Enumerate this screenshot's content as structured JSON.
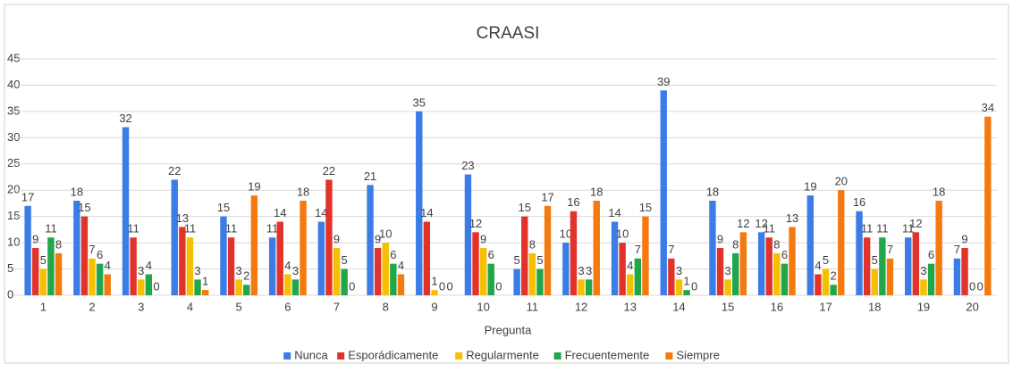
{
  "chart_data": {
    "type": "bar",
    "title": "CRAASI",
    "x_label": "Pregunta",
    "categories": [
      "1",
      "2",
      "3",
      "4",
      "5",
      "6",
      "7",
      "8",
      "9",
      "10",
      "11",
      "12",
      "13",
      "14",
      "15",
      "16",
      "17",
      "18",
      "19",
      "20"
    ],
    "series": [
      {
        "name": "Nunca",
        "color": "#3c7ce6",
        "values": [
          17,
          18,
          32,
          22,
          15,
          11,
          14,
          21,
          35,
          23,
          5,
          10,
          14,
          39,
          18,
          12,
          19,
          16,
          11,
          7
        ]
      },
      {
        "name": "Esporádicamente",
        "color": "#e2332a",
        "values": [
          9,
          15,
          11,
          13,
          11,
          14,
          22,
          9,
          14,
          12,
          15,
          16,
          10,
          7,
          9,
          11,
          4,
          11,
          12,
          9
        ]
      },
      {
        "name": "Regularmente",
        "color": "#f5c000",
        "values": [
          5,
          7,
          3,
          11,
          3,
          4,
          9,
          10,
          1,
          9,
          8,
          3,
          4,
          3,
          3,
          8,
          5,
          5,
          3,
          0
        ]
      },
      {
        "name": "Frecuentemente",
        "color": "#22a64a",
        "values": [
          11,
          6,
          4,
          3,
          2,
          3,
          5,
          6,
          0,
          6,
          5,
          3,
          7,
          1,
          8,
          6,
          2,
          11,
          6,
          0
        ]
      },
      {
        "name": "Siempre",
        "color": "#f47a10",
        "values": [
          8,
          4,
          0,
          1,
          19,
          18,
          0,
          4,
          0,
          0,
          17,
          18,
          15,
          0,
          12,
          13,
          20,
          7,
          18,
          34
        ]
      }
    ],
    "ylim": [
      0,
      45
    ],
    "yticks": [
      0,
      5,
      10,
      15,
      20,
      25,
      30,
      35,
      40,
      45
    ],
    "grid": true,
    "legend": "bottom"
  }
}
